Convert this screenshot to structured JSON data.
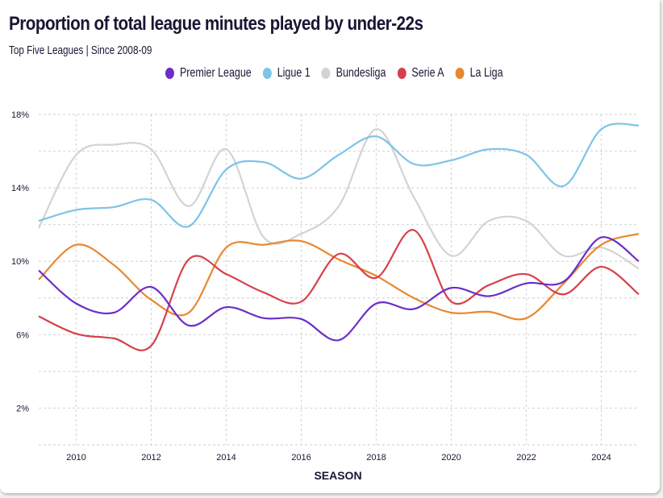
{
  "chart_data": {
    "type": "line",
    "title": "Proportion of total league minutes played by under-22s",
    "subtitle": "Top Five Leagues | Since 2008-09",
    "xlabel": "SEASON",
    "ylabel": "",
    "x": [
      2009,
      2010,
      2011,
      2012,
      2013,
      2014,
      2015,
      2016,
      2017,
      2018,
      2019,
      2020,
      2021,
      2022,
      2023,
      2024,
      2025
    ],
    "xlim": [
      2009,
      2025
    ],
    "ylim": [
      0,
      18
    ],
    "x_ticks": [
      2010,
      2012,
      2014,
      2016,
      2018,
      2020,
      2022,
      2024
    ],
    "y_ticks": [
      2,
      6,
      10,
      14,
      18
    ],
    "y_tick_labels": [
      "2%",
      "6%",
      "10%",
      "14%",
      "18%"
    ],
    "y_gridlines": [
      0,
      2,
      4,
      6,
      8,
      10,
      12,
      14,
      16,
      18
    ],
    "grid": true,
    "legend_position": "top-center",
    "series": [
      {
        "name": "Premier League",
        "color": "#6a2ec9",
        "values": [
          9.5,
          7.7,
          7.2,
          8.6,
          6.5,
          7.5,
          6.9,
          6.85,
          5.7,
          7.7,
          7.4,
          8.55,
          8.1,
          8.8,
          8.9,
          11.3,
          10.0
        ]
      },
      {
        "name": "Ligue 1",
        "color": "#7cc4e8",
        "values": [
          12.2,
          12.8,
          12.95,
          13.35,
          11.9,
          15.0,
          15.4,
          14.5,
          15.8,
          16.8,
          15.3,
          15.5,
          16.1,
          15.8,
          14.1,
          17.2,
          17.4
        ]
      },
      {
        "name": "Bundesliga",
        "color": "#d3d3d3",
        "values": [
          11.8,
          15.8,
          16.35,
          16.1,
          13.0,
          16.1,
          11.3,
          11.5,
          13.0,
          17.2,
          13.5,
          10.3,
          12.2,
          12.2,
          10.3,
          10.75,
          9.6
        ]
      },
      {
        "name": "Serie A",
        "color": "#d6404b",
        "values": [
          7.0,
          6.05,
          5.8,
          5.4,
          10.1,
          9.3,
          8.3,
          7.8,
          10.4,
          9.1,
          11.7,
          7.8,
          8.7,
          9.3,
          8.2,
          9.7,
          8.2
        ]
      },
      {
        "name": "La Liga",
        "color": "#e8872f",
        "values": [
          9.0,
          10.9,
          9.8,
          7.9,
          7.2,
          10.75,
          10.9,
          11.1,
          10.1,
          9.2,
          8.0,
          7.2,
          7.25,
          6.9,
          8.8,
          10.9,
          11.5
        ]
      }
    ]
  }
}
